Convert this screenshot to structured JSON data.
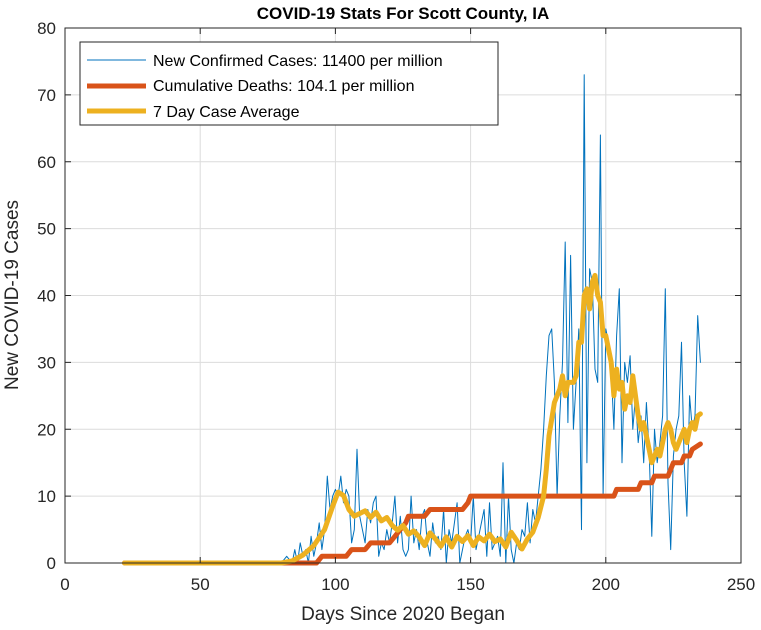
{
  "chart_data": {
    "type": "line",
    "title": "COVID-19 Stats For Scott County, IA",
    "xlabel": "Days Since 2020 Began",
    "ylabel": "New COVID-19 Cases",
    "xlim": [
      0,
      250
    ],
    "ylim": [
      0,
      80
    ],
    "xticks": [
      0,
      50,
      100,
      150,
      200,
      250
    ],
    "yticks": [
      0,
      10,
      20,
      30,
      40,
      50,
      60,
      70,
      80
    ],
    "grid": true,
    "legend_position": "top-left",
    "series": [
      {
        "name": "New Confirmed Cases: 11400 per million",
        "color": "#0072BD",
        "style": "thin",
        "points": [
          [
            22,
            0
          ],
          [
            30,
            0
          ],
          [
            40,
            0
          ],
          [
            50,
            0
          ],
          [
            60,
            0
          ],
          [
            70,
            0
          ],
          [
            80,
            0
          ],
          [
            82,
            1
          ],
          [
            84,
            0
          ],
          [
            85,
            2
          ],
          [
            86,
            0
          ],
          [
            87,
            3
          ],
          [
            88,
            1
          ],
          [
            89,
            2
          ],
          [
            90,
            0
          ],
          [
            91,
            4
          ],
          [
            92,
            1
          ],
          [
            93,
            3
          ],
          [
            94,
            6
          ],
          [
            95,
            2
          ],
          [
            96,
            5
          ],
          [
            97,
            13
          ],
          [
            98,
            8
          ],
          [
            99,
            10
          ],
          [
            100,
            11
          ],
          [
            101,
            10
          ],
          [
            102,
            13
          ],
          [
            103,
            9
          ],
          [
            104,
            11
          ],
          [
            105,
            10
          ],
          [
            106,
            3
          ],
          [
            107,
            5
          ],
          [
            108,
            17
          ],
          [
            109,
            7
          ],
          [
            110,
            5
          ],
          [
            111,
            3
          ],
          [
            112,
            8
          ],
          [
            113,
            6
          ],
          [
            114,
            9
          ],
          [
            115,
            10
          ],
          [
            116,
            1
          ],
          [
            117,
            3
          ],
          [
            118,
            2
          ],
          [
            119,
            5
          ],
          [
            120,
            3
          ],
          [
            121,
            6
          ],
          [
            122,
            10
          ],
          [
            123,
            3
          ],
          [
            124,
            7
          ],
          [
            125,
            2
          ],
          [
            126,
            1
          ],
          [
            127,
            2
          ],
          [
            128,
            10
          ],
          [
            129,
            3
          ],
          [
            130,
            5
          ],
          [
            131,
            2
          ],
          [
            132,
            7
          ],
          [
            133,
            8
          ],
          [
            134,
            3
          ],
          [
            135,
            1
          ],
          [
            136,
            6
          ],
          [
            137,
            3
          ],
          [
            138,
            4
          ],
          [
            139,
            2
          ],
          [
            140,
            8
          ],
          [
            141,
            0
          ],
          [
            142,
            5
          ],
          [
            143,
            3
          ],
          [
            144,
            6
          ],
          [
            145,
            9
          ],
          [
            146,
            0
          ],
          [
            147,
            2
          ],
          [
            148,
            4
          ],
          [
            149,
            5
          ],
          [
            150,
            3
          ],
          [
            151,
            10
          ],
          [
            152,
            2
          ],
          [
            153,
            4
          ],
          [
            154,
            6
          ],
          [
            155,
            8
          ],
          [
            156,
            1
          ],
          [
            157,
            9
          ],
          [
            158,
            2
          ],
          [
            159,
            3
          ],
          [
            160,
            4
          ],
          [
            161,
            1
          ],
          [
            162,
            15
          ],
          [
            163,
            0
          ],
          [
            164,
            10
          ],
          [
            165,
            2
          ],
          [
            166,
            0
          ],
          [
            167,
            3
          ],
          [
            168,
            2
          ],
          [
            169,
            5
          ],
          [
            170,
            4
          ],
          [
            171,
            9
          ],
          [
            172,
            3
          ],
          [
            173,
            8
          ],
          [
            174,
            6
          ],
          [
            175,
            10
          ],
          [
            176,
            14
          ],
          [
            177,
            20
          ],
          [
            178,
            28
          ],
          [
            179,
            34
          ],
          [
            180,
            35
          ],
          [
            181,
            27
          ],
          [
            182,
            10
          ],
          [
            183,
            22
          ],
          [
            184,
            30
          ],
          [
            185,
            48
          ],
          [
            186,
            21
          ],
          [
            187,
            46
          ],
          [
            188,
            20
          ],
          [
            189,
            27
          ],
          [
            190,
            35
          ],
          [
            191,
            5
          ],
          [
            192,
            73
          ],
          [
            193,
            15
          ],
          [
            194,
            44
          ],
          [
            195,
            42
          ],
          [
            196,
            29
          ],
          [
            197,
            27
          ],
          [
            198,
            64
          ],
          [
            199,
            10
          ],
          [
            200,
            35
          ],
          [
            201,
            33
          ],
          [
            202,
            29
          ],
          [
            203,
            20
          ],
          [
            204,
            34
          ],
          [
            205,
            41
          ],
          [
            206,
            15
          ],
          [
            207,
            30
          ],
          [
            208,
            27
          ],
          [
            209,
            31
          ],
          [
            210,
            20
          ],
          [
            211,
            25
          ],
          [
            212,
            18
          ],
          [
            213,
            22
          ],
          [
            214,
            15
          ],
          [
            215,
            24
          ],
          [
            216,
            17
          ],
          [
            217,
            4
          ],
          [
            218,
            20
          ],
          [
            219,
            15
          ],
          [
            220,
            18
          ],
          [
            221,
            22
          ],
          [
            222,
            41
          ],
          [
            223,
            12
          ],
          [
            224,
            2
          ],
          [
            225,
            16
          ],
          [
            226,
            20
          ],
          [
            227,
            22
          ],
          [
            228,
            33
          ],
          [
            229,
            15
          ],
          [
            230,
            7
          ],
          [
            231,
            25
          ],
          [
            232,
            20
          ],
          [
            233,
            22
          ],
          [
            234,
            37
          ],
          [
            235,
            30
          ]
        ]
      },
      {
        "name": "Cumulative Deaths: 104.1 per million",
        "color": "#D95319",
        "style": "thick",
        "points": [
          [
            22,
            0
          ],
          [
            93,
            0
          ],
          [
            95,
            1
          ],
          [
            104,
            1
          ],
          [
            106,
            2
          ],
          [
            111,
            2
          ],
          [
            113,
            3
          ],
          [
            120,
            3
          ],
          [
            122,
            4
          ],
          [
            124,
            5
          ],
          [
            126,
            6
          ],
          [
            127,
            7
          ],
          [
            133,
            7
          ],
          [
            135,
            8
          ],
          [
            147,
            8
          ],
          [
            149,
            9
          ],
          [
            150,
            10
          ],
          [
            180,
            10
          ],
          [
            190,
            10
          ],
          [
            203,
            10
          ],
          [
            204,
            11
          ],
          [
            212,
            11
          ],
          [
            213,
            12
          ],
          [
            217,
            12
          ],
          [
            218,
            13
          ],
          [
            223,
            13
          ],
          [
            224,
            14
          ],
          [
            225,
            15
          ],
          [
            228,
            15
          ],
          [
            229,
            16
          ],
          [
            231,
            16
          ],
          [
            232,
            17
          ],
          [
            235,
            17.8
          ]
        ]
      },
      {
        "name": "7 Day Case Average",
        "color": "#EDB120",
        "style": "thick",
        "points": [
          [
            22,
            0
          ],
          [
            80,
            0
          ],
          [
            84,
            0.3
          ],
          [
            88,
            1.2
          ],
          [
            92,
            2.6
          ],
          [
            96,
            5
          ],
          [
            99,
            8.5
          ],
          [
            101,
            10.6
          ],
          [
            103,
            10.1
          ],
          [
            105,
            8
          ],
          [
            107,
            7
          ],
          [
            109,
            7.4
          ],
          [
            111,
            7.8
          ],
          [
            113,
            6.8
          ],
          [
            115,
            7.6
          ],
          [
            117,
            6.3
          ],
          [
            119,
            6.8
          ],
          [
            121,
            5.6
          ],
          [
            123,
            4.9
          ],
          [
            125,
            5.6
          ],
          [
            127,
            4.3
          ],
          [
            129,
            4.8
          ],
          [
            131,
            3.9
          ],
          [
            133,
            2.6
          ],
          [
            135,
            4.5
          ],
          [
            137,
            3.6
          ],
          [
            139,
            2.5
          ],
          [
            141,
            3.9
          ],
          [
            143,
            2.4
          ],
          [
            145,
            4
          ],
          [
            147,
            3.2
          ],
          [
            149,
            4.1
          ],
          [
            151,
            2.6
          ],
          [
            153,
            3.9
          ],
          [
            155,
            3.3
          ],
          [
            157,
            4.3
          ],
          [
            159,
            3.2
          ],
          [
            161,
            3.6
          ],
          [
            163,
            2.4
          ],
          [
            165,
            4.6
          ],
          [
            167,
            3.4
          ],
          [
            169,
            2.1
          ],
          [
            171,
            3.6
          ],
          [
            173,
            4.6
          ],
          [
            175,
            6.8
          ],
          [
            177,
            10
          ],
          [
            178,
            14
          ],
          [
            179,
            19
          ],
          [
            181,
            24
          ],
          [
            183,
            26
          ],
          [
            184,
            28
          ],
          [
            185,
            25
          ],
          [
            186,
            27
          ],
          [
            187,
            27
          ],
          [
            188,
            27
          ],
          [
            189,
            28
          ],
          [
            190,
            33
          ],
          [
            191,
            33
          ],
          [
            192,
            40
          ],
          [
            193,
            41
          ],
          [
            194,
            38
          ],
          [
            195,
            42
          ],
          [
            196,
            43
          ],
          [
            197,
            40
          ],
          [
            198,
            39
          ],
          [
            199,
            34
          ],
          [
            200,
            34
          ],
          [
            201,
            32
          ],
          [
            202,
            30
          ],
          [
            203,
            25
          ],
          [
            204,
            29
          ],
          [
            205,
            26
          ],
          [
            206,
            27
          ],
          [
            207,
            23
          ],
          [
            208,
            25
          ],
          [
            209,
            24
          ],
          [
            210,
            28
          ],
          [
            211,
            25
          ],
          [
            212,
            22
          ],
          [
            213,
            20
          ],
          [
            214,
            21
          ],
          [
            215,
            19
          ],
          [
            216,
            17
          ],
          [
            217,
            15
          ],
          [
            218,
            16
          ],
          [
            219,
            17
          ],
          [
            220,
            16
          ],
          [
            221,
            18
          ],
          [
            222,
            20
          ],
          [
            223,
            21
          ],
          [
            224,
            20
          ],
          [
            225,
            18
          ],
          [
            226,
            17
          ],
          [
            227,
            18
          ],
          [
            228,
            19
          ],
          [
            229,
            20
          ],
          [
            230,
            18
          ],
          [
            231,
            20
          ],
          [
            232,
            21
          ],
          [
            233,
            20
          ],
          [
            234,
            22
          ],
          [
            235,
            22.3
          ]
        ]
      }
    ]
  }
}
